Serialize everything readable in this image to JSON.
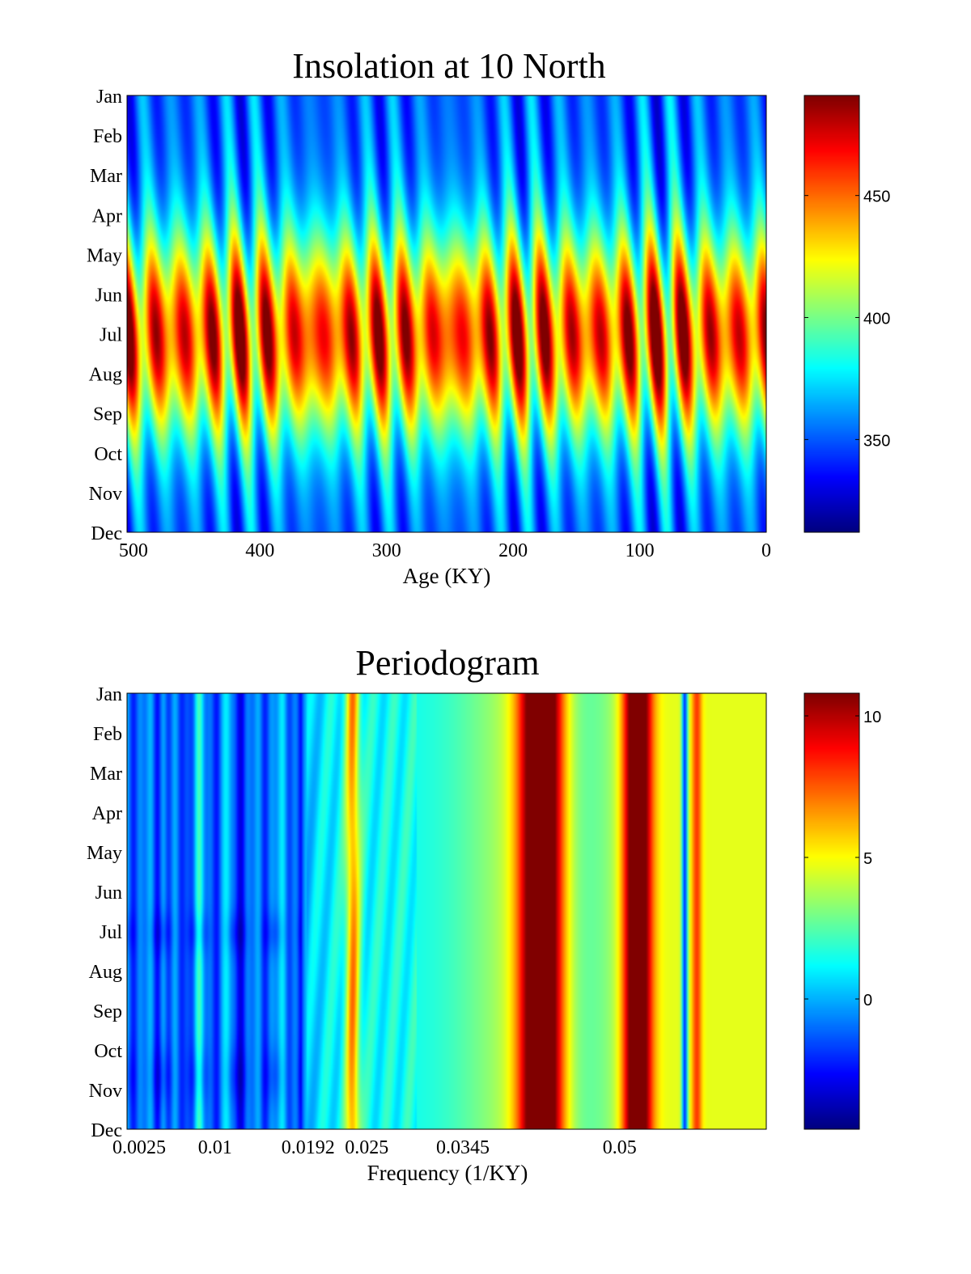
{
  "chart_data": [
    {
      "type": "heatmap",
      "title": "Insolation at 10 North",
      "xlabel": "Age (KY)",
      "ylabel": "",
      "x_ticks": [
        500,
        400,
        300,
        200,
        100,
        0
      ],
      "x_tick_labels": [
        "500",
        "400",
        "300",
        "200",
        "100",
        "0"
      ],
      "xlim": [
        505,
        0
      ],
      "y_tick_labels": [
        "Jan",
        "Feb",
        "Mar",
        "Apr",
        "May",
        "Jun",
        "Jul",
        "Aug",
        "Sep",
        "Oct",
        "Nov",
        "Dec"
      ],
      "colormap": "jet",
      "colorbar": {
        "ticks": [
          350,
          400,
          450
        ],
        "tick_labels": [
          "350",
          "400",
          "450"
        ],
        "range": [
          312,
          491
        ]
      },
      "grid": false,
      "description_values": {
        "peak_ages_ky": [
          494,
          472,
          450,
          428,
          406,
          384,
          362,
          340,
          318,
          296,
          274,
          252,
          230,
          208,
          186,
          164,
          142,
          120,
          98,
          76,
          54,
          32,
          10
        ],
        "max_value": 491,
        "min_value": 312
      }
    },
    {
      "type": "heatmap",
      "title": "Periodogram",
      "xlabel": "Frequency (1/KY)",
      "ylabel": "",
      "x_ticks": [
        0.0025,
        0.01,
        0.0192,
        0.025,
        0.0345,
        0.05
      ],
      "x_tick_labels": [
        "0.0025",
        "0.01",
        "0.0192",
        "0.025",
        "0.0345",
        "0.05"
      ],
      "xlim": [
        0.0013,
        0.0645
      ],
      "y_tick_labels": [
        "Jan",
        "Feb",
        "Mar",
        "Apr",
        "May",
        "Jun",
        "Jul",
        "Aug",
        "Sep",
        "Oct",
        "Nov",
        "Dec"
      ],
      "colormap": "jet",
      "colorbar": {
        "ticks": [
          0,
          5,
          10
        ],
        "tick_labels": [
          "0",
          "5",
          "10"
        ],
        "range": [
          -4.6,
          10.8
        ]
      },
      "grid": false,
      "description_values": {
        "peak_frequencies": [
          0.0423,
          0.0518
        ],
        "secondary_peaks": [
          0.0236,
          0.0577
        ],
        "max_value": 10.8,
        "min_value": -4.6
      }
    }
  ]
}
